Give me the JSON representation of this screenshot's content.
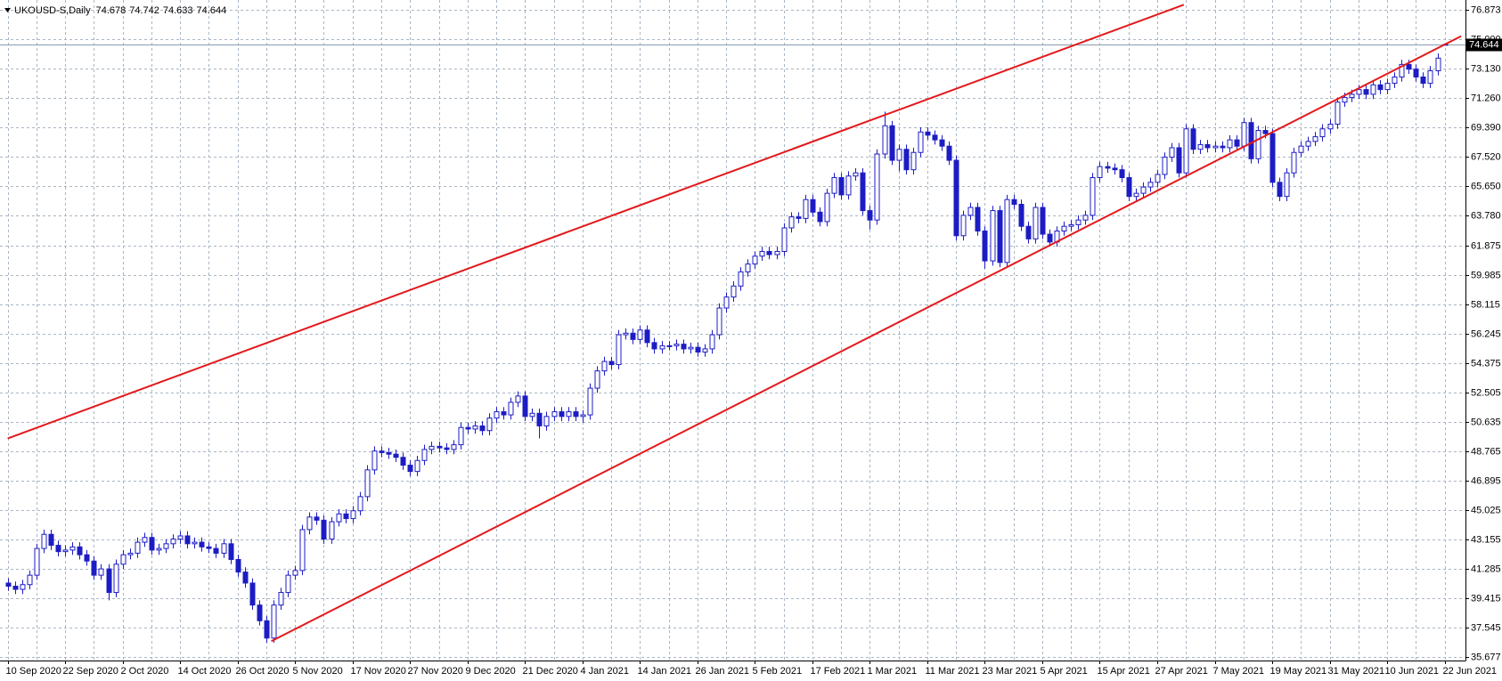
{
  "chart_data": {
    "type": "candlestick",
    "symbol": "UKOUSD-S,Daily",
    "color": "#1c1cc4",
    "up_fill": "#ffffff",
    "grid": true,
    "ylim": [
      35.47,
      77.5
    ],
    "yticks": [
      76.873,
      {
        "value": 75,
        "label": "75.000"
      },
      {
        "value": 73.13,
        "label": "73.130"
      },
      {
        "value": 71.26,
        "label": "71.260"
      },
      {
        "value": 69.39,
        "label": "69.390"
      },
      {
        "value": 67.52,
        "label": "67.520"
      },
      {
        "value": 65.65,
        "label": "65.650"
      },
      {
        "value": 63.78,
        "label": "63.780"
      },
      61.875,
      59.985,
      58.115,
      56.245,
      54.375,
      52.505,
      50.635,
      48.765,
      46.895,
      45.025,
      43.155,
      41.285,
      39.415,
      37.545,
      35.677
    ],
    "categories": [
      "10 Sep 2020",
      null,
      null,
      null,
      null,
      null,
      null,
      null,
      "22 Sep 2020",
      null,
      null,
      null,
      null,
      null,
      null,
      null,
      "2 Oct 2020",
      null,
      null,
      null,
      null,
      null,
      null,
      null,
      "14 Oct 2020",
      null,
      null,
      null,
      null,
      null,
      null,
      null,
      "26 Oct 2020",
      null,
      null,
      null,
      null,
      null,
      null,
      null,
      "5 Nov 2020",
      null,
      null,
      null,
      null,
      null,
      null,
      null,
      "17 Nov 2020",
      null,
      null,
      null,
      null,
      null,
      null,
      null,
      "27 Nov 2020",
      null,
      null,
      null,
      null,
      null,
      null,
      null,
      "9 Dec 2020",
      null,
      null,
      null,
      null,
      null,
      null,
      null,
      "21 Dec 2020",
      null,
      null,
      null,
      null,
      null,
      null,
      null,
      "4 Jan 2021",
      null,
      null,
      null,
      null,
      null,
      null,
      null,
      "14 Jan 2021",
      null,
      null,
      null,
      null,
      null,
      null,
      null,
      "26 Jan 2021",
      null,
      null,
      null,
      null,
      null,
      null,
      null,
      "5 Feb 2021",
      null,
      null,
      null,
      null,
      null,
      null,
      null,
      "17 Feb 2021",
      null,
      null,
      null,
      null,
      null,
      null,
      null,
      "1 Mar 2021",
      null,
      null,
      null,
      null,
      null,
      null,
      null,
      "11 Mar 2021",
      null,
      null,
      null,
      null,
      null,
      null,
      null,
      "23 Mar 2021",
      null,
      null,
      null,
      null,
      null,
      null,
      null,
      "5 Apr 2021",
      null,
      null,
      null,
      null,
      null,
      null,
      null,
      "15 Apr 2021",
      null,
      null,
      null,
      null,
      null,
      null,
      null,
      "27 Apr 2021",
      null,
      null,
      null,
      null,
      null,
      null,
      null,
      "7 May 2021",
      null,
      null,
      null,
      null,
      null,
      null,
      null,
      "19 May 2021",
      null,
      null,
      null,
      null,
      null,
      null,
      null,
      "31 May 2021",
      null,
      null,
      null,
      null,
      null,
      null,
      null,
      "10 Jun 2021",
      null,
      null,
      null,
      null,
      null,
      null,
      null,
      "22 Jun 2021"
    ],
    "ohlc": [
      [
        40.4,
        40.7,
        39.9,
        40.2
      ],
      [
        40.2,
        40.5,
        39.7,
        40.0
      ],
      [
        40.0,
        40.6,
        39.7,
        40.3
      ],
      [
        40.3,
        41.2,
        40.0,
        40.9
      ],
      [
        40.9,
        42.9,
        40.6,
        42.6
      ],
      [
        42.6,
        43.8,
        42.3,
        43.5
      ],
      [
        43.5,
        43.8,
        42.5,
        42.8
      ],
      [
        42.8,
        43.1,
        42.1,
        42.4
      ],
      [
        42.4,
        42.8,
        42.1,
        42.5
      ],
      [
        42.5,
        43.0,
        42.2,
        42.7
      ],
      [
        42.7,
        43.0,
        41.9,
        42.2
      ],
      [
        42.2,
        42.5,
        41.5,
        41.8
      ],
      [
        41.8,
        42.1,
        40.6,
        40.9
      ],
      [
        40.9,
        41.6,
        40.6,
        41.3
      ],
      [
        41.3,
        41.6,
        39.3,
        39.8
      ],
      [
        39.8,
        41.9,
        39.5,
        41.6
      ],
      [
        41.6,
        42.5,
        41.3,
        42.2
      ],
      [
        42.2,
        42.6,
        41.9,
        42.3
      ],
      [
        42.3,
        43.3,
        42.0,
        43.0
      ],
      [
        43.0,
        43.6,
        42.7,
        43.3
      ],
      [
        43.3,
        43.6,
        42.2,
        42.5
      ],
      [
        42.5,
        42.9,
        42.2,
        42.6
      ],
      [
        42.6,
        43.2,
        42.3,
        42.9
      ],
      [
        42.9,
        43.5,
        42.6,
        43.2
      ],
      [
        43.2,
        43.7,
        42.9,
        43.4
      ],
      [
        43.4,
        43.7,
        42.6,
        42.9
      ],
      [
        42.9,
        43.3,
        42.6,
        43.0
      ],
      [
        43.0,
        43.3,
        42.4,
        42.7
      ],
      [
        42.7,
        43.0,
        42.3,
        42.6
      ],
      [
        42.6,
        42.9,
        42.0,
        42.3
      ],
      [
        42.3,
        43.2,
        42.0,
        42.9
      ],
      [
        42.9,
        43.2,
        41.6,
        41.9
      ],
      [
        41.9,
        42.2,
        40.8,
        41.1
      ],
      [
        41.1,
        41.4,
        40.1,
        40.4
      ],
      [
        40.4,
        40.7,
        38.7,
        39.0
      ],
      [
        39.0,
        39.3,
        37.7,
        38.0
      ],
      [
        38.0,
        38.3,
        36.6,
        36.9
      ],
      [
        36.9,
        39.3,
        36.6,
        39.0
      ],
      [
        39.0,
        40.1,
        38.7,
        39.8
      ],
      [
        39.8,
        41.2,
        39.5,
        40.9
      ],
      [
        40.9,
        41.5,
        40.6,
        41.2
      ],
      [
        41.2,
        44.1,
        40.9,
        43.8
      ],
      [
        43.8,
        44.9,
        43.5,
        44.6
      ],
      [
        44.6,
        44.9,
        44.1,
        44.4
      ],
      [
        44.4,
        44.7,
        42.9,
        43.2
      ],
      [
        43.2,
        44.6,
        42.9,
        44.3
      ],
      [
        44.3,
        45.1,
        44.0,
        44.8
      ],
      [
        44.8,
        45.1,
        44.2,
        44.5
      ],
      [
        44.5,
        45.3,
        44.2,
        45.0
      ],
      [
        45.0,
        46.2,
        44.7,
        45.9
      ],
      [
        45.9,
        47.9,
        45.6,
        47.6
      ],
      [
        47.6,
        49.1,
        47.3,
        48.8
      ],
      [
        48.8,
        49.1,
        48.4,
        48.7
      ],
      [
        48.7,
        49.0,
        48.3,
        48.6
      ],
      [
        48.6,
        48.9,
        48.1,
        48.4
      ],
      [
        48.4,
        48.7,
        47.6,
        47.9
      ],
      [
        47.9,
        48.2,
        47.2,
        47.5
      ],
      [
        47.5,
        48.5,
        47.2,
        48.2
      ],
      [
        48.2,
        49.2,
        47.9,
        48.9
      ],
      [
        48.9,
        49.4,
        48.6,
        49.1
      ],
      [
        49.1,
        49.4,
        48.7,
        49.0
      ],
      [
        49.0,
        49.3,
        48.6,
        48.9
      ],
      [
        48.9,
        49.5,
        48.6,
        49.2
      ],
      [
        49.2,
        50.6,
        48.9,
        50.3
      ],
      [
        50.3,
        50.6,
        49.9,
        50.2
      ],
      [
        50.2,
        50.7,
        49.9,
        50.4
      ],
      [
        50.4,
        50.7,
        49.8,
        50.1
      ],
      [
        50.1,
        51.2,
        49.8,
        50.9
      ],
      [
        50.9,
        51.6,
        50.6,
        51.3
      ],
      [
        51.3,
        51.6,
        50.8,
        51.1
      ],
      [
        51.1,
        52.2,
        50.8,
        51.9
      ],
      [
        51.9,
        52.6,
        51.6,
        52.3
      ],
      [
        52.3,
        52.6,
        50.7,
        51.0
      ],
      [
        51.0,
        51.5,
        50.7,
        51.2
      ],
      [
        51.2,
        51.5,
        49.6,
        50.4
      ],
      [
        50.4,
        51.3,
        50.1,
        51.0
      ],
      [
        51.0,
        51.6,
        50.7,
        51.3
      ],
      [
        51.3,
        51.6,
        50.7,
        51.0
      ],
      [
        51.0,
        51.6,
        50.7,
        51.3
      ],
      [
        51.3,
        51.6,
        50.7,
        51.0
      ],
      [
        51.0,
        51.4,
        50.6,
        51.1
      ],
      [
        51.1,
        53.1,
        50.8,
        52.8
      ],
      [
        52.8,
        54.2,
        52.5,
        53.9
      ],
      [
        53.9,
        54.8,
        53.6,
        54.5
      ],
      [
        54.5,
        54.8,
        54.0,
        54.3
      ],
      [
        54.3,
        56.5,
        54.0,
        56.2
      ],
      [
        56.2,
        56.6,
        55.9,
        56.3
      ],
      [
        56.3,
        56.6,
        55.6,
        55.9
      ],
      [
        55.9,
        56.8,
        55.6,
        56.5
      ],
      [
        56.5,
        56.8,
        55.4,
        55.7
      ],
      [
        55.7,
        56.0,
        55.0,
        55.3
      ],
      [
        55.3,
        55.8,
        55.0,
        55.5
      ],
      [
        55.5,
        55.8,
        55.2,
        55.5
      ],
      [
        55.5,
        55.9,
        55.2,
        55.6
      ],
      [
        55.6,
        55.9,
        55.0,
        55.3
      ],
      [
        55.3,
        55.7,
        55.0,
        55.4
      ],
      [
        55.4,
        55.7,
        54.8,
        55.1
      ],
      [
        55.1,
        55.6,
        54.8,
        55.3
      ],
      [
        55.3,
        56.5,
        55.0,
        56.2
      ],
      [
        56.2,
        58.2,
        55.9,
        57.9
      ],
      [
        57.9,
        58.9,
        57.6,
        58.6
      ],
      [
        58.6,
        59.6,
        58.3,
        59.3
      ],
      [
        59.3,
        60.5,
        59.0,
        60.2
      ],
      [
        60.2,
        61.0,
        59.9,
        60.7
      ],
      [
        60.7,
        61.5,
        60.4,
        61.2
      ],
      [
        61.2,
        61.8,
        60.9,
        61.5
      ],
      [
        61.5,
        61.8,
        61.0,
        61.3
      ],
      [
        61.3,
        61.8,
        61.0,
        61.5
      ],
      [
        61.5,
        63.3,
        61.2,
        63.0
      ],
      [
        63.0,
        64.0,
        62.7,
        63.7
      ],
      [
        63.7,
        64.0,
        63.3,
        63.6
      ],
      [
        63.6,
        65.1,
        63.3,
        64.8
      ],
      [
        64.8,
        65.1,
        63.7,
        64.0
      ],
      [
        64.0,
        64.3,
        63.1,
        63.4
      ],
      [
        63.4,
        65.5,
        63.1,
        65.2
      ],
      [
        65.2,
        66.5,
        64.9,
        66.2
      ],
      [
        66.2,
        66.5,
        64.8,
        65.1
      ],
      [
        65.1,
        66.6,
        64.8,
        66.3
      ],
      [
        66.3,
        66.8,
        66.0,
        66.5
      ],
      [
        66.5,
        66.8,
        63.8,
        64.1
      ],
      [
        64.1,
        64.4,
        62.9,
        63.5
      ],
      [
        63.5,
        68.0,
        63.2,
        67.7
      ],
      [
        67.7,
        70.4,
        67.4,
        69.5
      ],
      [
        69.5,
        69.8,
        67.0,
        67.3
      ],
      [
        67.3,
        68.3,
        66.6,
        68.0
      ],
      [
        68.0,
        68.3,
        66.4,
        66.7
      ],
      [
        66.7,
        68.1,
        66.4,
        67.8
      ],
      [
        67.8,
        69.4,
        67.5,
        69.1
      ],
      [
        69.1,
        69.4,
        68.6,
        68.9
      ],
      [
        68.9,
        69.2,
        68.3,
        68.6
      ],
      [
        68.6,
        68.9,
        67.9,
        68.2
      ],
      [
        68.2,
        68.5,
        67.0,
        67.3
      ],
      [
        67.3,
        67.6,
        62.2,
        62.5
      ],
      [
        62.5,
        64.1,
        62.2,
        63.8
      ],
      [
        63.8,
        64.6,
        63.5,
        64.3
      ],
      [
        64.3,
        64.6,
        62.5,
        62.8
      ],
      [
        62.8,
        63.1,
        60.4,
        60.9
      ],
      [
        60.9,
        64.4,
        60.6,
        64.1
      ],
      [
        64.1,
        64.4,
        60.5,
        60.8
      ],
      [
        60.8,
        65.1,
        60.5,
        64.8
      ],
      [
        64.8,
        65.1,
        64.2,
        64.5
      ],
      [
        64.5,
        64.8,
        62.8,
        63.1
      ],
      [
        63.1,
        63.4,
        62.0,
        62.3
      ],
      [
        62.3,
        64.6,
        62.0,
        64.3
      ],
      [
        64.3,
        64.6,
        62.3,
        62.6
      ],
      [
        62.6,
        62.9,
        61.8,
        62.1
      ],
      [
        62.1,
        63.1,
        61.8,
        62.8
      ],
      [
        62.8,
        63.4,
        62.5,
        63.1
      ],
      [
        63.1,
        63.5,
        62.8,
        63.2
      ],
      [
        63.2,
        63.8,
        62.9,
        63.5
      ],
      [
        63.5,
        64.1,
        63.2,
        63.8
      ],
      [
        63.8,
        66.5,
        63.5,
        66.2
      ],
      [
        66.2,
        67.2,
        65.9,
        66.9
      ],
      [
        66.9,
        67.2,
        66.5,
        66.8
      ],
      [
        66.8,
        67.1,
        66.4,
        66.7
      ],
      [
        66.7,
        67.0,
        65.9,
        66.2
      ],
      [
        66.2,
        66.5,
        64.7,
        65.0
      ],
      [
        65.0,
        65.5,
        64.7,
        65.2
      ],
      [
        65.2,
        65.9,
        64.9,
        65.6
      ],
      [
        65.6,
        66.2,
        65.3,
        65.9
      ],
      [
        65.9,
        66.7,
        65.6,
        66.4
      ],
      [
        66.4,
        67.8,
        66.1,
        67.5
      ],
      [
        67.5,
        68.4,
        67.2,
        68.1
      ],
      [
        68.1,
        68.4,
        66.2,
        66.5
      ],
      [
        66.5,
        69.6,
        66.2,
        69.3
      ],
      [
        69.3,
        69.6,
        67.7,
        68.0
      ],
      [
        68.0,
        68.6,
        67.7,
        68.3
      ],
      [
        68.3,
        68.6,
        67.8,
        68.1
      ],
      [
        68.1,
        68.5,
        67.8,
        68.2
      ],
      [
        68.2,
        68.5,
        67.8,
        68.1
      ],
      [
        68.1,
        68.9,
        67.8,
        68.6
      ],
      [
        68.6,
        68.9,
        67.9,
        68.2
      ],
      [
        68.2,
        70.0,
        67.9,
        69.7
      ],
      [
        69.7,
        70.0,
        67.1,
        67.4
      ],
      [
        67.4,
        69.5,
        67.1,
        69.2
      ],
      [
        69.2,
        69.5,
        68.7,
        69.0
      ],
      [
        69.0,
        69.3,
        65.6,
        65.9
      ],
      [
        65.9,
        66.2,
        64.7,
        65.0
      ],
      [
        65.0,
        66.8,
        64.7,
        66.5
      ],
      [
        66.5,
        68.1,
        66.2,
        67.8
      ],
      [
        67.8,
        68.5,
        67.5,
        68.2
      ],
      [
        68.2,
        68.8,
        67.9,
        68.5
      ],
      [
        68.5,
        69.1,
        68.2,
        68.8
      ],
      [
        68.8,
        69.6,
        68.5,
        69.3
      ],
      [
        69.3,
        69.9,
        69.0,
        69.6
      ],
      [
        69.6,
        71.3,
        69.3,
        71.0
      ],
      [
        71.0,
        71.6,
        70.7,
        71.3
      ],
      [
        71.3,
        71.8,
        71.0,
        71.5
      ],
      [
        71.5,
        72.1,
        71.2,
        71.8
      ],
      [
        71.8,
        72.1,
        71.2,
        71.5
      ],
      [
        71.5,
        72.4,
        71.2,
        72.1
      ],
      [
        72.1,
        72.4,
        71.5,
        71.8
      ],
      [
        71.8,
        72.5,
        71.5,
        72.2
      ],
      [
        72.2,
        72.9,
        71.9,
        72.6
      ],
      [
        72.6,
        73.7,
        72.3,
        73.4
      ],
      [
        73.4,
        73.7,
        72.8,
        73.1
      ],
      [
        73.1,
        73.4,
        72.3,
        72.6
      ],
      [
        72.6,
        72.9,
        71.9,
        72.2
      ],
      [
        72.2,
        73.3,
        71.9,
        73.0
      ],
      [
        73.0,
        74.1,
        72.7,
        73.8
      ],
      [
        74.678,
        74.742,
        74.633,
        74.644
      ]
    ],
    "price_line_color": "#8a9bb0",
    "trendlines": [
      {
        "color": "#e3191c",
        "x": [
          0,
          163.7
        ],
        "y": [
          49.6,
          77.2
        ]
      },
      {
        "color": "#e3191c",
        "x": [
          36.7,
          202.3
        ],
        "y": [
          36.7,
          75.2
        ]
      }
    ]
  }
}
